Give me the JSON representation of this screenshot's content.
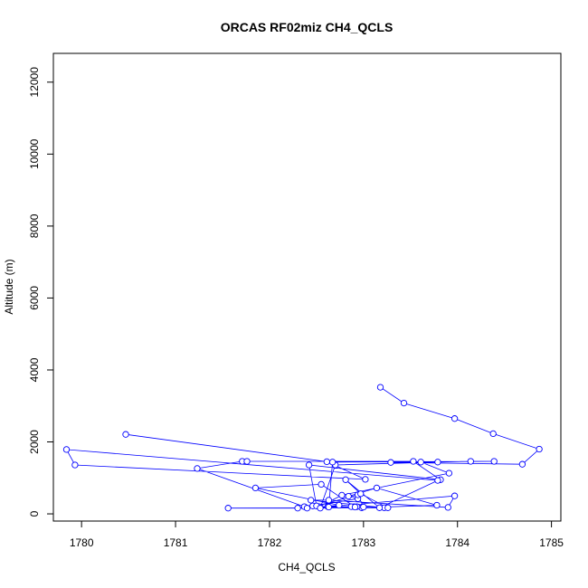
{
  "chart_data": {
    "type": "line",
    "title": "ORCAS RF02miz CH4_QCLS",
    "xlabel": "CH4_QCLS",
    "ylabel": "Altitude (m)",
    "xlim": [
      1779.7,
      1785.1
    ],
    "ylim": [
      -200,
      12800
    ],
    "x_ticks": [
      "1780",
      "1781",
      "1782",
      "1783",
      "1784",
      "1785"
    ],
    "y_ticks": [
      "0",
      "2000",
      "4000",
      "6000",
      "8000",
      "10000",
      "12000"
    ],
    "grid": false,
    "legend": "none",
    "series_color": "#0000ff",
    "series": [
      {
        "x": [
          1783.18,
          1783.43,
          1783.97,
          1784.38,
          1784.87,
          1784.69,
          1783.29,
          1783.61,
          1783.91,
          1782.77,
          1782.53,
          1782.98,
          1783.78,
          1783.14,
          1782.84,
          1782.94,
          1782.46,
          1782.3,
          1782.93,
          1783.22,
          1782.44,
          1782.63,
          1783.9,
          1783.97,
          1782.62,
          1782.9,
          1782.87,
          1782.37,
          1781.23,
          1781.71,
          1781.76,
          1783.53,
          1783.82,
          1782.42,
          1782.5,
          1782.94,
          1783.0,
          1782.54,
          1782.7,
          1783.79,
          1784.14,
          1784.39,
          1782.67,
          1782.63,
          1782.91,
          1782.55,
          1781.85,
          1782.74,
          1782.4,
          1781.56,
          1783.26,
          1782.97,
          1782.81,
          1783.17,
          1783.79,
          1779.84,
          1779.93,
          1783.02,
          1782.61,
          1780.47
        ],
        "y": [
          3520,
          3080,
          2650,
          2230,
          1800,
          1380,
          1430,
          1440,
          1130,
          520,
          200,
          170,
          240,
          720,
          490,
          420,
          220,
          160,
          200,
          170,
          380,
          380,
          180,
          500,
          200,
          200,
          200,
          200,
          1260,
          1460,
          1460,
          1460,
          950,
          1360,
          220,
          530,
          190,
          160,
          1360,
          1440,
          1460,
          1460,
          1440,
          190,
          190,
          820,
          720,
          240,
          160,
          160,
          170,
          560,
          950,
          170,
          930,
          1790,
          1360,
          960,
          1450,
          2210
        ]
      }
    ]
  }
}
